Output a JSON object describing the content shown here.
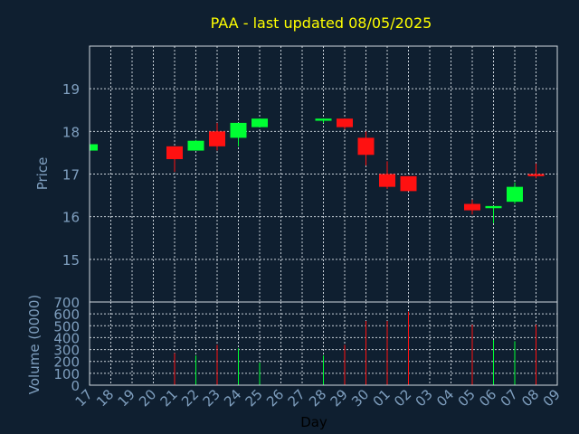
{
  "chart_data": {
    "type": "candlestick",
    "title": "PAA - last updated 08/05/2025",
    "xlabel": "Day",
    "ylabel_price": "Price",
    "ylabel_volume": "Volume (0000)",
    "x_ticks": [
      "17",
      "18",
      "19",
      "20",
      "21",
      "22",
      "23",
      "24",
      "25",
      "26",
      "27",
      "28",
      "29",
      "30",
      "01",
      "02",
      "03",
      "04",
      "05",
      "06",
      "07",
      "08",
      "09"
    ],
    "price_ticks": [
      15,
      16,
      17,
      18,
      19
    ],
    "price_ylim": [
      14.0,
      20.0
    ],
    "volume_ticks": [
      0,
      100,
      200,
      300,
      400,
      500,
      600,
      700
    ],
    "volume_ylim": [
      0,
      700
    ],
    "grid": true,
    "colors": {
      "background": "#0f1f30",
      "plot_border": "#d0d8e0",
      "grid": "#c8d0d8",
      "title": "#ffff00",
      "axis_text": "#7f9fbf",
      "up": "#00ff33",
      "down": "#ff1111"
    },
    "candles": [
      {
        "day": "17",
        "open": 17.55,
        "high": 17.7,
        "low": 17.55,
        "close": 17.7,
        "volume": 0
      },
      {
        "day": "21",
        "open": 17.65,
        "high": 17.65,
        "low": 17.05,
        "close": 17.35,
        "volume": 270
      },
      {
        "day": "22",
        "open": 17.55,
        "high": 17.8,
        "low": 17.55,
        "close": 17.78,
        "volume": 250
      },
      {
        "day": "23",
        "open": 18.0,
        "high": 18.2,
        "low": 17.55,
        "close": 17.65,
        "volume": 340
      },
      {
        "day": "24",
        "open": 17.85,
        "high": 18.2,
        "low": 17.65,
        "close": 18.2,
        "volume": 310
      },
      {
        "day": "25",
        "open": 18.1,
        "high": 18.3,
        "low": 18.1,
        "close": 18.3,
        "volume": 190
      },
      {
        "day": "28",
        "open": 18.25,
        "high": 18.3,
        "low": 18.2,
        "close": 18.3,
        "volume": 250
      },
      {
        "day": "29",
        "open": 18.3,
        "high": 18.3,
        "low": 18.05,
        "close": 18.1,
        "volume": 340
      },
      {
        "day": "30",
        "open": 17.85,
        "high": 18.0,
        "low": 17.2,
        "close": 17.45,
        "volume": 540
      },
      {
        "day": "01",
        "open": 17.0,
        "high": 17.3,
        "low": 16.65,
        "close": 16.7,
        "volume": 540
      },
      {
        "day": "02",
        "open": 16.95,
        "high": 16.95,
        "low": 16.6,
        "close": 16.6,
        "volume": 620
      },
      {
        "day": "05",
        "open": 16.3,
        "high": 16.4,
        "low": 16.05,
        "close": 16.15,
        "volume": 510
      },
      {
        "day": "06",
        "open": 16.2,
        "high": 16.25,
        "low": 15.85,
        "close": 16.25,
        "volume": 380
      },
      {
        "day": "07",
        "open": 16.35,
        "high": 16.8,
        "low": 16.3,
        "close": 16.7,
        "volume": 370
      },
      {
        "day": "08",
        "open": 17.0,
        "high": 17.25,
        "low": 16.9,
        "close": 16.95,
        "volume": 510
      }
    ]
  }
}
